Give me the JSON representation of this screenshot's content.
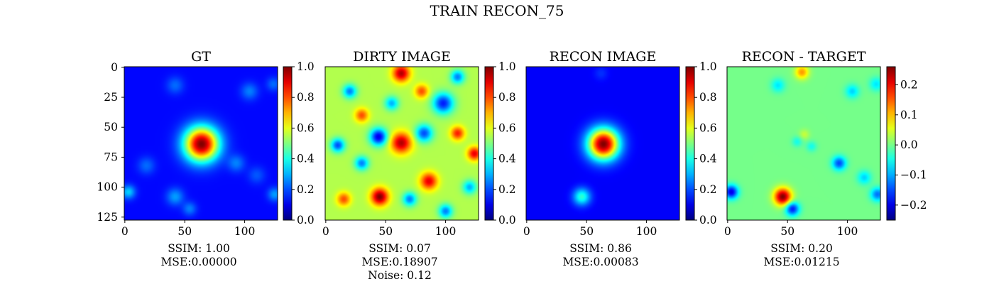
{
  "chart_data": {
    "title": "TRAIN RECON_75",
    "type": "heatmap",
    "colormap": "jet",
    "panels": [
      {
        "title": "GT",
        "x_ticks": [
          0,
          50,
          100
        ],
        "y_ticks": [
          0,
          25,
          50,
          75,
          100,
          125
        ],
        "image_range": [
          0,
          127
        ],
        "colorbar": {
          "range": [
            0.0,
            1.0
          ],
          "ticks": [
            "0.0",
            "0.2",
            "0.4",
            "0.6",
            "0.8",
            "1.0"
          ]
        },
        "caption": [
          "SSIM: 1.00",
          "MSE:0.00000"
        ],
        "background_level": 0.13,
        "blobs": [
          {
            "x": 64,
            "y": 64,
            "sigma": 10,
            "amp": 0.87
          },
          {
            "x": 42,
            "y": 15,
            "sigma": 5,
            "amp": 0.1
          },
          {
            "x": 104,
            "y": 20,
            "sigma": 5,
            "amp": 0.12
          },
          {
            "x": 124,
            "y": 14,
            "sigma": 4,
            "amp": 0.1
          },
          {
            "x": 18,
            "y": 82,
            "sigma": 5,
            "amp": 0.1
          },
          {
            "x": 93,
            "y": 80,
            "sigma": 5,
            "amp": 0.12
          },
          {
            "x": 3,
            "y": 104,
            "sigma": 4,
            "amp": 0.2
          },
          {
            "x": 42,
            "y": 108,
            "sigma": 5,
            "amp": 0.15
          },
          {
            "x": 54,
            "y": 118,
            "sigma": 4,
            "amp": 0.12
          },
          {
            "x": 125,
            "y": 106,
            "sigma": 4,
            "amp": 0.15
          },
          {
            "x": 110,
            "y": 90,
            "sigma": 5,
            "amp": 0.08
          }
        ]
      },
      {
        "title": "DIRTY IMAGE",
        "x_ticks": [
          0,
          50,
          100
        ],
        "image_range": [
          0,
          127
        ],
        "colorbar": {
          "range": [
            0.0,
            1.0
          ],
          "ticks": [
            "0.0",
            "0.2",
            "0.4",
            "0.6",
            "0.8",
            "1.0"
          ]
        },
        "caption": [
          "SSIM: 0.07",
          "MSE:0.18907",
          "Noise: 0.12"
        ],
        "background_level": 0.55,
        "blobs": [
          {
            "x": 63,
            "y": 63,
            "sigma": 6,
            "amp": 0.4
          },
          {
            "x": 44,
            "y": 58,
            "sigma": 5,
            "amp": -0.45
          },
          {
            "x": 45,
            "y": 108,
            "sigma": 5,
            "amp": 0.45
          },
          {
            "x": 63,
            "y": 5,
            "sigma": 5,
            "amp": 0.4
          },
          {
            "x": 86,
            "y": 95,
            "sigma": 5,
            "amp": 0.35
          },
          {
            "x": 98,
            "y": 30,
            "sigma": 6,
            "amp": -0.4
          },
          {
            "x": 82,
            "y": 55,
            "sigma": 5,
            "amp": -0.35
          },
          {
            "x": 124,
            "y": 72,
            "sigma": 4,
            "amp": 0.35
          },
          {
            "x": 10,
            "y": 65,
            "sigma": 4,
            "amp": -0.35
          },
          {
            "x": 110,
            "y": 8,
            "sigma": 4,
            "amp": -0.3
          },
          {
            "x": 30,
            "y": 80,
            "sigma": 4,
            "amp": -0.3
          },
          {
            "x": 100,
            "y": 120,
            "sigma": 4,
            "amp": -0.3
          },
          {
            "x": 110,
            "y": 55,
            "sigma": 4,
            "amp": 0.3
          },
          {
            "x": 20,
            "y": 20,
            "sigma": 4,
            "amp": -0.3
          },
          {
            "x": 70,
            "y": 110,
            "sigma": 4,
            "amp": -0.3
          },
          {
            "x": 80,
            "y": 20,
            "sigma": 4,
            "amp": 0.25
          },
          {
            "x": 15,
            "y": 110,
            "sigma": 4,
            "amp": 0.25
          },
          {
            "x": 55,
            "y": 30,
            "sigma": 4,
            "amp": -0.25
          },
          {
            "x": 120,
            "y": 100,
            "sigma": 4,
            "amp": -0.25
          },
          {
            "x": 30,
            "y": 40,
            "sigma": 4,
            "amp": 0.25
          }
        ]
      },
      {
        "title": "RECON IMAGE",
        "x_ticks": [
          0,
          50,
          100
        ],
        "image_range": [
          0,
          127
        ],
        "colorbar": {
          "range": [
            0.0,
            1.0
          ],
          "ticks": [
            "0.0",
            "0.2",
            "0.4",
            "0.6",
            "0.8",
            "1.0"
          ]
        },
        "caption": [
          "SSIM: 0.86",
          "MSE:0.00083"
        ],
        "background_level": 0.12,
        "blobs": [
          {
            "x": 64,
            "y": 64,
            "sigma": 9,
            "amp": 0.88
          },
          {
            "x": 46,
            "y": 108,
            "sigma": 5,
            "amp": 0.3
          },
          {
            "x": 62,
            "y": 5,
            "sigma": 4,
            "amp": 0.05
          }
        ]
      },
      {
        "title": "RECON - TARGET",
        "x_ticks": [
          0,
          50,
          100
        ],
        "image_range": [
          0,
          127
        ],
        "colorbar": {
          "range": [
            -0.25,
            0.26
          ],
          "ticks": [
            "0.2",
            "0.1",
            "0.0",
            "−0.1",
            "−0.2"
          ],
          "tick_values": [
            0.2,
            0.1,
            0.0,
            -0.1,
            -0.2
          ]
        },
        "caption": [
          "SSIM: 0.20",
          "MSE:0.01215"
        ],
        "background_level": 0.0,
        "blobs": [
          {
            "x": 46,
            "y": 108,
            "sigma": 5,
            "amp": 0.26
          },
          {
            "x": 3,
            "y": 104,
            "sigma": 4,
            "amp": -0.2
          },
          {
            "x": 54,
            "y": 118,
            "sigma": 4,
            "amp": -0.18
          },
          {
            "x": 93,
            "y": 80,
            "sigma": 4,
            "amp": -0.15
          },
          {
            "x": 125,
            "y": 106,
            "sigma": 4,
            "amp": -0.13
          },
          {
            "x": 114,
            "y": 92,
            "sigma": 4,
            "amp": -0.08
          },
          {
            "x": 104,
            "y": 20,
            "sigma": 4,
            "amp": -0.08
          },
          {
            "x": 124,
            "y": 14,
            "sigma": 4,
            "amp": -0.07
          },
          {
            "x": 42,
            "y": 15,
            "sigma": 4,
            "amp": -0.07
          },
          {
            "x": 62,
            "y": 4,
            "sigma": 4,
            "amp": 0.12
          },
          {
            "x": 58,
            "y": 62,
            "sigma": 3,
            "amp": -0.05
          },
          {
            "x": 70,
            "y": 66,
            "sigma": 3,
            "amp": -0.05
          },
          {
            "x": 64,
            "y": 56,
            "sigma": 3,
            "amp": 0.04
          }
        ]
      }
    ]
  }
}
